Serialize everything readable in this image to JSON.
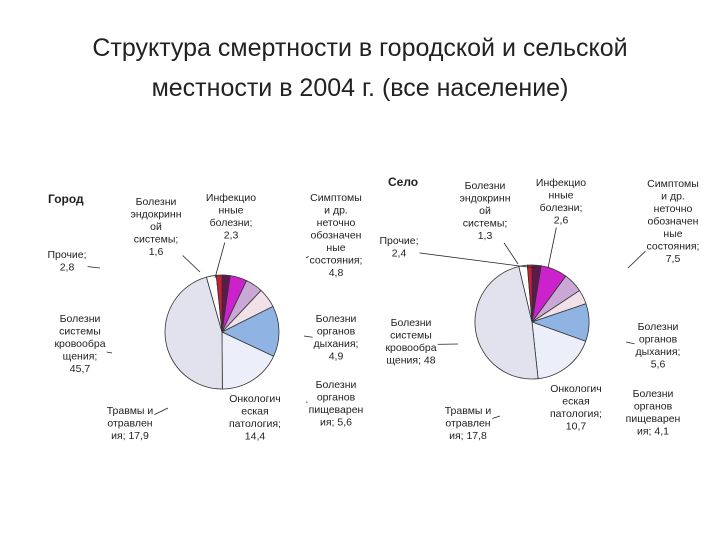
{
  "title": {
    "line1": "Структура смертности в городской и сельской",
    "line2": "местности в 2004 г. (все население)"
  },
  "colors": {
    "infection": "#5a1a4a",
    "endocrine": "#cc1f33",
    "symptoms": "#cc22cc",
    "respiratory": "#c9a8d6",
    "digestive": "#f2e0e8",
    "oncology": "#8fb4e3",
    "trauma": "#eceefa",
    "other": "#ffffff",
    "circulatory": "#e2e2ee"
  },
  "chart_data": [
    {
      "type": "pie",
      "title": "Город",
      "slices": [
        {
          "key": "infection",
          "label": [
            "Инфекцио",
            "нные",
            "болезни;",
            "2,3"
          ],
          "value": 2.3
        },
        {
          "key": "symptoms",
          "label": [
            "Симптомы",
            "и др.",
            "неточно",
            "обозначен",
            "ные",
            "состояния;",
            "4,8"
          ],
          "value": 4.8
        },
        {
          "key": "respiratory",
          "label": [
            "Болезни",
            "органов",
            "дыхания;",
            "4,9"
          ],
          "value": 4.9
        },
        {
          "key": "digestive",
          "label": [
            "Болезни",
            "органов",
            "пищеварен",
            "ия; 5,6"
          ],
          "value": 5.6
        },
        {
          "key": "oncology",
          "label": [
            "Онкологич",
            "еская",
            "патология;",
            "14,4"
          ],
          "value": 14.4
        },
        {
          "key": "trauma",
          "label": [
            "Травмы и",
            "отравлен",
            "ия; 17,9"
          ],
          "value": 17.9
        },
        {
          "key": "circulatory",
          "label": [
            "Болезни",
            "системы",
            "кровообра",
            "щения;",
            "45,7"
          ],
          "value": 45.7
        },
        {
          "key": "other",
          "label": [
            "Прочие;",
            "2,8"
          ],
          "value": 2.8
        },
        {
          "key": "endocrine",
          "label": [
            "Болезни",
            "эндокринн",
            "ой",
            "системы;",
            "1,6"
          ],
          "value": 1.6
        }
      ]
    },
    {
      "type": "pie",
      "title": "Село",
      "slices": [
        {
          "key": "infection",
          "label": [
            "Инфекцио",
            "нные",
            "болезни;",
            "2,6"
          ],
          "value": 2.6
        },
        {
          "key": "symptoms",
          "label": [
            "Симптомы",
            "и др.",
            "неточно",
            "обозначен",
            "ные",
            "состояния;",
            "7,5"
          ],
          "value": 7.5
        },
        {
          "key": "respiratory",
          "label": [
            "Болезни",
            "органов",
            "дыхания;",
            "5,6"
          ],
          "value": 5.6
        },
        {
          "key": "digestive",
          "label": [
            "Болезни",
            "органов",
            "пищеварен",
            "ия; 4,1"
          ],
          "value": 4.1
        },
        {
          "key": "oncology",
          "label": [
            "Онкологич",
            "еская",
            "патология;",
            "10,7"
          ],
          "value": 10.7
        },
        {
          "key": "trauma",
          "label": [
            "Травмы и",
            "отравлен",
            "ия; 17,8"
          ],
          "value": 17.8
        },
        {
          "key": "circulatory",
          "label": [
            "Болезни",
            "системы",
            "кровообра",
            "щения; 48"
          ],
          "value": 48
        },
        {
          "key": "other",
          "label": [
            "Прочие;",
            "2,4"
          ],
          "value": 2.4
        },
        {
          "key": "endocrine",
          "label": [
            "Болезни",
            "эндокринн",
            "ой",
            "системы;",
            "1,3"
          ],
          "value": 1.3
        }
      ]
    }
  ]
}
